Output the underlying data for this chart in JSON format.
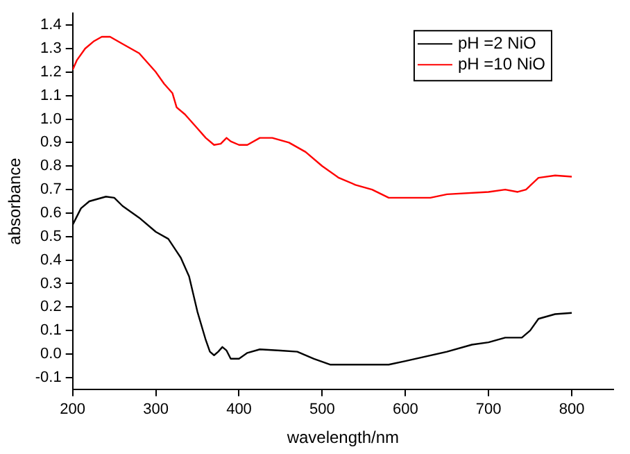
{
  "chart_data": {
    "type": "line",
    "xlabel": "wavelength/nm",
    "ylabel": "absorbance",
    "xlim": [
      200,
      850
    ],
    "xticks": [
      200,
      300,
      400,
      500,
      600,
      700,
      800
    ],
    "ylim": [
      -0.15,
      1.45
    ],
    "yticks": [
      {
        "value": -0.1,
        "label": "-0.1"
      },
      {
        "value": 0,
        "label": "0.0"
      },
      {
        "value": 0.1,
        "label": "0.1"
      },
      {
        "value": 0.2,
        "label": "0.2"
      },
      {
        "value": 0.3,
        "label": "0.3"
      },
      {
        "value": 0.4,
        "label": "0.4"
      },
      {
        "value": 0.5,
        "label": "0.5"
      },
      {
        "value": 0.6,
        "label": "0.6"
      },
      {
        "value": 0.7,
        "label": "0.7"
      },
      {
        "value": 0.8,
        "label": "0.8"
      },
      {
        "value": 0.9,
        "label": "0.9"
      },
      {
        "value": 1,
        "label": "1.0"
      },
      {
        "value": 1.1,
        "label": "1.1"
      },
      {
        "value": 1.2,
        "label": "1.2"
      },
      {
        "value": 1.3,
        "label": "1.3"
      },
      {
        "value": 1.4,
        "label": "1.4"
      }
    ],
    "grid": false,
    "legend": "top right",
    "marker": "none",
    "line_style": "solid",
    "series": [
      {
        "name": "pH =2 NiO",
        "color": "#000000",
        "x": [
          200,
          210,
          220,
          240,
          250,
          260,
          280,
          300,
          315,
          330,
          340,
          350,
          360,
          365,
          370,
          375,
          380,
          385,
          390,
          400,
          410,
          425,
          450,
          470,
          490,
          510,
          550,
          580,
          600,
          650,
          680,
          700,
          720,
          740,
          750,
          760,
          780,
          800
        ],
        "values": [
          0.55,
          0.62,
          0.65,
          0.67,
          0.665,
          0.63,
          0.58,
          0.52,
          0.49,
          0.41,
          0.33,
          0.18,
          0.06,
          0.01,
          -0.005,
          0.01,
          0.03,
          0.015,
          -0.02,
          -0.02,
          0.005,
          0.02,
          0.015,
          0.01,
          -0.02,
          -0.045,
          -0.045,
          -0.045,
          -0.03,
          0.01,
          0.04,
          0.05,
          0.07,
          0.07,
          0.1,
          0.15,
          0.17,
          0.175
        ]
      },
      {
        "name": "pH =10 NiO",
        "color": "#ff0000",
        "x": [
          200,
          205,
          215,
          225,
          235,
          245,
          260,
          280,
          300,
          310,
          320,
          325,
          335,
          350,
          360,
          370,
          378,
          385,
          390,
          400,
          410,
          425,
          440,
          460,
          480,
          500,
          520,
          540,
          560,
          580,
          600,
          630,
          650,
          700,
          720,
          735,
          745,
          760,
          780,
          800
        ],
        "values": [
          1.21,
          1.25,
          1.3,
          1.33,
          1.35,
          1.35,
          1.32,
          1.28,
          1.2,
          1.15,
          1.11,
          1.05,
          1.02,
          0.96,
          0.92,
          0.89,
          0.895,
          0.92,
          0.905,
          0.89,
          0.89,
          0.92,
          0.92,
          0.9,
          0.86,
          0.8,
          0.75,
          0.72,
          0.7,
          0.665,
          0.665,
          0.665,
          0.68,
          0.69,
          0.7,
          0.69,
          0.7,
          0.75,
          0.76,
          0.755
        ]
      }
    ]
  }
}
